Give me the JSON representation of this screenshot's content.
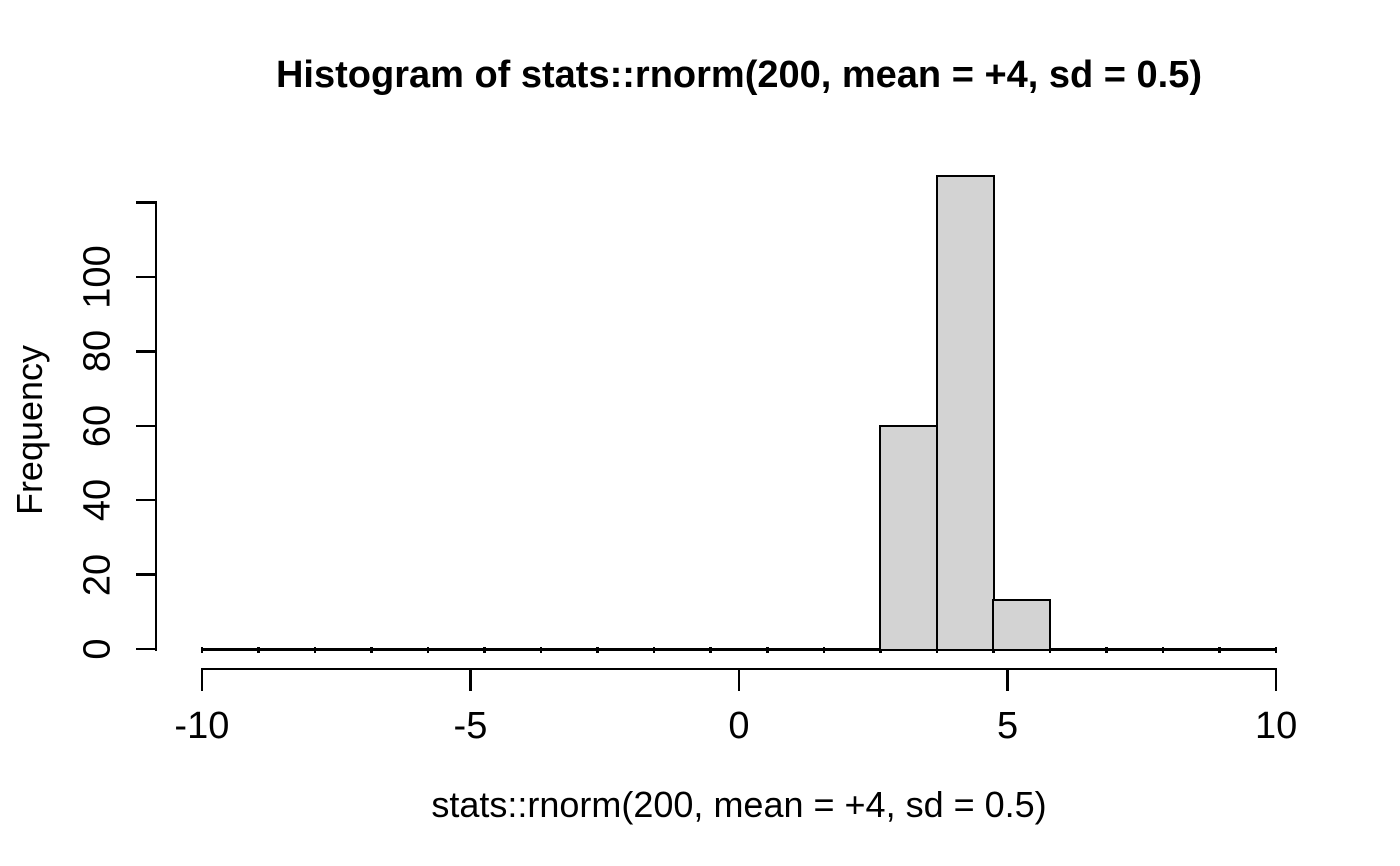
{
  "figure": {
    "title": "Histogram of stats::rnorm(200, mean = +4, sd = 0.5)",
    "x_axis_label": "stats::rnorm(200, mean = +4, sd = 0.5)",
    "y_axis_label": "Frequency"
  },
  "chart_data": {
    "type": "bar",
    "subtype": "histogram",
    "title": "Histogram of stats::rnorm(200, mean = +4, sd = 0.5)",
    "xlabel": "stats::rnorm(200, mean = +4, sd = 0.5)",
    "ylabel": "Frequency",
    "n_total": 200,
    "xlim": [
      -10,
      10
    ],
    "ylim": [
      0,
      127
    ],
    "x_ticks": [
      -10,
      -5,
      0,
      5,
      10
    ],
    "y_ticks": [
      0,
      20,
      40,
      60,
      80,
      100
    ],
    "y_axis_unlabeled_top_tick": 120,
    "bin_width": 1.0526,
    "bin_edges": [
      -10,
      -8.947,
      -7.895,
      -6.842,
      -5.789,
      -4.737,
      -3.684,
      -2.632,
      -1.579,
      -0.526,
      0.526,
      1.579,
      2.632,
      3.684,
      4.737,
      5.789,
      6.842,
      7.895,
      8.947,
      10
    ],
    "counts": [
      0,
      0,
      0,
      0,
      0,
      0,
      0,
      0,
      0,
      0,
      0,
      0,
      60,
      127,
      13,
      0,
      0,
      0,
      0
    ],
    "visible_bars": [
      {
        "from": 2.63,
        "to": 3.68,
        "count": 60
      },
      {
        "from": 3.68,
        "to": 4.74,
        "count": 127
      },
      {
        "from": 4.74,
        "to": 5.79,
        "count": 13
      }
    ],
    "grid": false,
    "legend": false,
    "bar_fill": "#d3d3d3",
    "bar_border": "#000000",
    "axis_color": "#000000",
    "background": "#ffffff"
  }
}
